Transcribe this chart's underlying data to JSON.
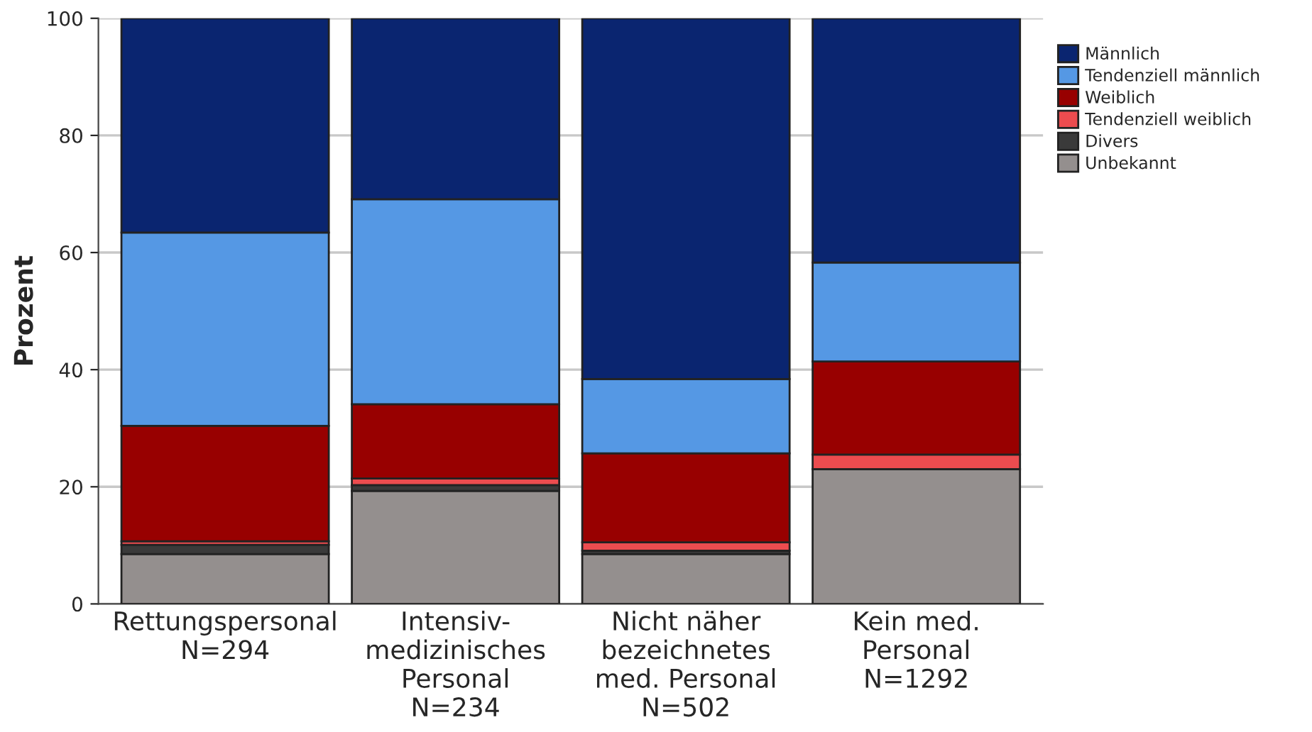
{
  "chart_data": {
    "type": "bar",
    "stacked": true,
    "ylabel": "Prozent",
    "categories": [
      "Rettungspersonal\nN=294",
      "Intensiv-\nmedizinisches\nPersonal\nN=234",
      "Nicht näher\nbezeichnetes\nmed. Personal\nN=502",
      "Kein med.\nPersonal\nN=1292"
    ],
    "series": [
      {
        "name": "Unbekannt",
        "color": "#948f8e",
        "values": [
          8.5,
          19.3,
          8.5,
          23.0
        ]
      },
      {
        "name": "Divers",
        "color": "#3a3a3a",
        "values": [
          1.6,
          1.0,
          0.6,
          null
        ]
      },
      {
        "name": "Tendenziell weiblich",
        "color": "#ec4c4f",
        "values": [
          0.6,
          1.1,
          1.4,
          2.5
        ]
      },
      {
        "name": "Weiblich",
        "color": "#980000",
        "values": [
          19.7,
          12.7,
          15.2,
          15.9
        ]
      },
      {
        "name": "Tendenziell männlich",
        "color": "#5598e4",
        "values": [
          33.0,
          35.0,
          12.7,
          16.9
        ]
      },
      {
        "name": "Männlich",
        "color": "#0a2570",
        "values": [
          36.6,
          30.9,
          61.6,
          41.7
        ]
      }
    ],
    "ylim": [
      0,
      100
    ],
    "yticks": [
      0,
      20,
      40,
      60,
      80,
      100
    ],
    "grid": "y",
    "legend": "top right"
  }
}
